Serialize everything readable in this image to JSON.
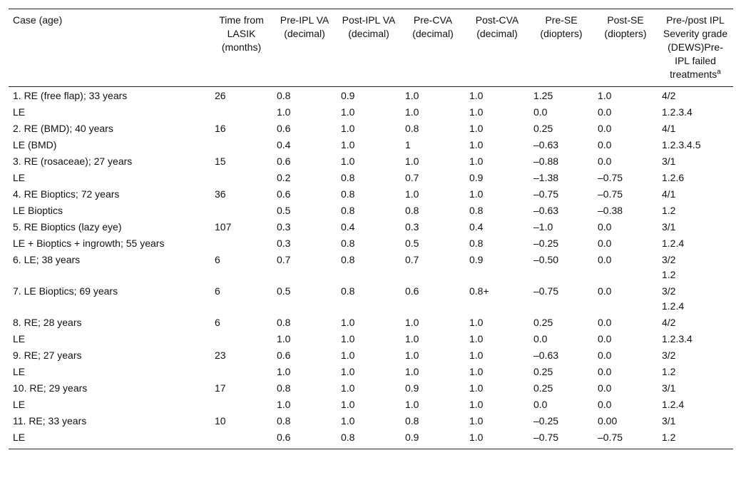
{
  "table": {
    "headers": [
      "Case (age)",
      "Time from LASIK (months)",
      "Pre-IPL VA (decimal)",
      "Post-IPL VA (decimal)",
      "Pre-CVA (decimal)",
      "Post-CVA (decimal)",
      "Pre-SE (diopters)",
      "Post-SE (diopters)",
      "Pre-/post IPL Severity grade (DEWS)Pre-IPL failed treatments"
    ],
    "header_superscript": "a",
    "rows": [
      [
        "1. RE (free flap); 33 years",
        "26",
        "0.8",
        "0.9",
        "1.0",
        "1.0",
        "1.25",
        "1.0",
        "4/2"
      ],
      [
        "LE",
        null,
        "1.0",
        "1.0",
        "1.0",
        "1.0",
        "0.0",
        "0.0",
        "1.2.3.4"
      ],
      [
        "2. RE (BMD); 40 years",
        "16",
        "0.6",
        "1.0",
        "0.8",
        "1.0",
        "0.25",
        "0.0",
        "4/1"
      ],
      [
        "LE (BMD)",
        null,
        "0.4",
        "1.0",
        "1",
        "1.0",
        "–0.63",
        "0.0",
        "1.2.3.4.5"
      ],
      [
        "3. RE (rosaceae); 27 years",
        "15",
        "0.6",
        "1.0",
        "1.0",
        "1.0",
        "–0.88",
        "0.0",
        "3/1"
      ],
      [
        "LE",
        null,
        "0.2",
        "0.8",
        "0.7",
        "0.9",
        "–1.38",
        "–0.75",
        "1.2.6"
      ],
      [
        "4. RE Bioptics; 72 years",
        "36",
        "0.6",
        "0.8",
        "1.0",
        "1.0",
        "–0.75",
        "–0.75",
        "4/1"
      ],
      [
        "LE Bioptics",
        null,
        "0.5",
        "0.8",
        "0.8",
        "0.8",
        "–0.63",
        "–0.38",
        "1.2"
      ],
      [
        "5. RE Bioptics (lazy eye)",
        "107",
        "0.3",
        "0.4",
        "0.3",
        "0.4",
        "–1.0",
        "0.0",
        "3/1"
      ],
      [
        "LE + Bioptics + ingrowth; 55 years",
        null,
        "0.3",
        "0.8",
        "0.5",
        "0.8",
        "–0.25",
        "0.0",
        "1.2.4"
      ],
      [
        "6. LE; 38 years",
        "6",
        "0.7",
        "0.8",
        "0.7",
        "0.9",
        "–0.50",
        "0.0",
        [
          "3/2",
          "1.2"
        ]
      ],
      [
        "7. LE Bioptics; 69 years",
        "6",
        "0.5",
        "0.8",
        "0.6",
        "0.8+",
        "–0.75",
        "0.0",
        [
          "3/2",
          "1.2.4"
        ]
      ],
      [
        "8. RE; 28 years",
        "6",
        "0.8",
        "1.0",
        "1.0",
        "1.0",
        "0.25",
        "0.0",
        "4/2"
      ],
      [
        "LE",
        null,
        "1.0",
        "1.0",
        "1.0",
        "1.0",
        "0.0",
        "0.0",
        "1.2.3.4"
      ],
      [
        "9. RE; 27 years",
        "23",
        "0.6",
        "1.0",
        "1.0",
        "1.0",
        "–0.63",
        "0.0",
        "3/2"
      ],
      [
        "LE",
        null,
        "1.0",
        "1.0",
        "1.0",
        "1.0",
        "0.25",
        "0.0",
        "1.2"
      ],
      [
        "10. RE; 29 years",
        "17",
        "0.8",
        "1.0",
        "0.9",
        "1.0",
        "0.25",
        "0.0",
        "3/1"
      ],
      [
        "LE",
        null,
        "1.0",
        "1.0",
        "1.0",
        "1.0",
        "0.0",
        "0.0",
        "1.2.4"
      ],
      [
        "11. RE; 33 years",
        "10",
        "0.8",
        "1.0",
        "0.8",
        "1.0",
        "–0.25",
        "0.00",
        "3/1"
      ],
      [
        "LE",
        null,
        "0.6",
        "0.8",
        "0.9",
        "1.0",
        "–0.75",
        "–0.75",
        "1.2"
      ]
    ]
  }
}
